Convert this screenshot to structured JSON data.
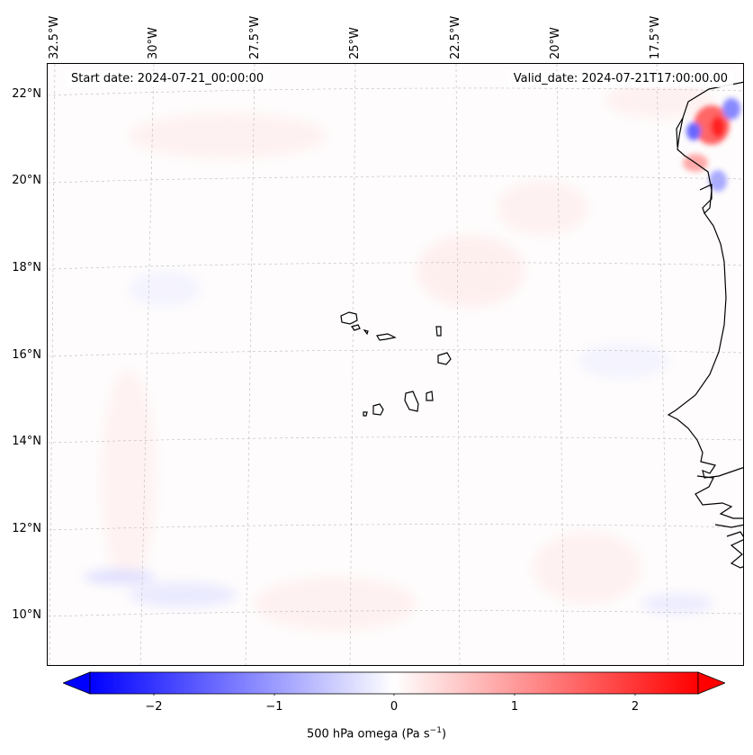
{
  "header": {
    "start_date": "Start date: 2024-07-21_00:00:00",
    "valid_date": "Valid_date: 2024-07-21T17:00:00.00"
  },
  "axes": {
    "lon_labels": [
      "32.5°W",
      "30°W",
      "27.5°W",
      "25°W",
      "22.5°W",
      "20°W",
      "17.5°W"
    ],
    "lat_labels": [
      "22°N",
      "20°N",
      "18°N",
      "16°N",
      "14°N",
      "12°N",
      "10°N"
    ]
  },
  "colorbar": {
    "label_main": "500 hPa omega (Pa s",
    "label_exp": "−1",
    "label_end": ")",
    "ticks": [
      "−2",
      "−1",
      "0",
      "1",
      "2"
    ],
    "range": [
      -2.7,
      2.7
    ],
    "colors": {
      "negative": "#0000ff",
      "zero": "#ffffff",
      "positive": "#ff0000"
    }
  },
  "map": {
    "field": "500 hPa omega",
    "features": [
      "coastline-africa",
      "cape-verde-islands"
    ]
  }
}
